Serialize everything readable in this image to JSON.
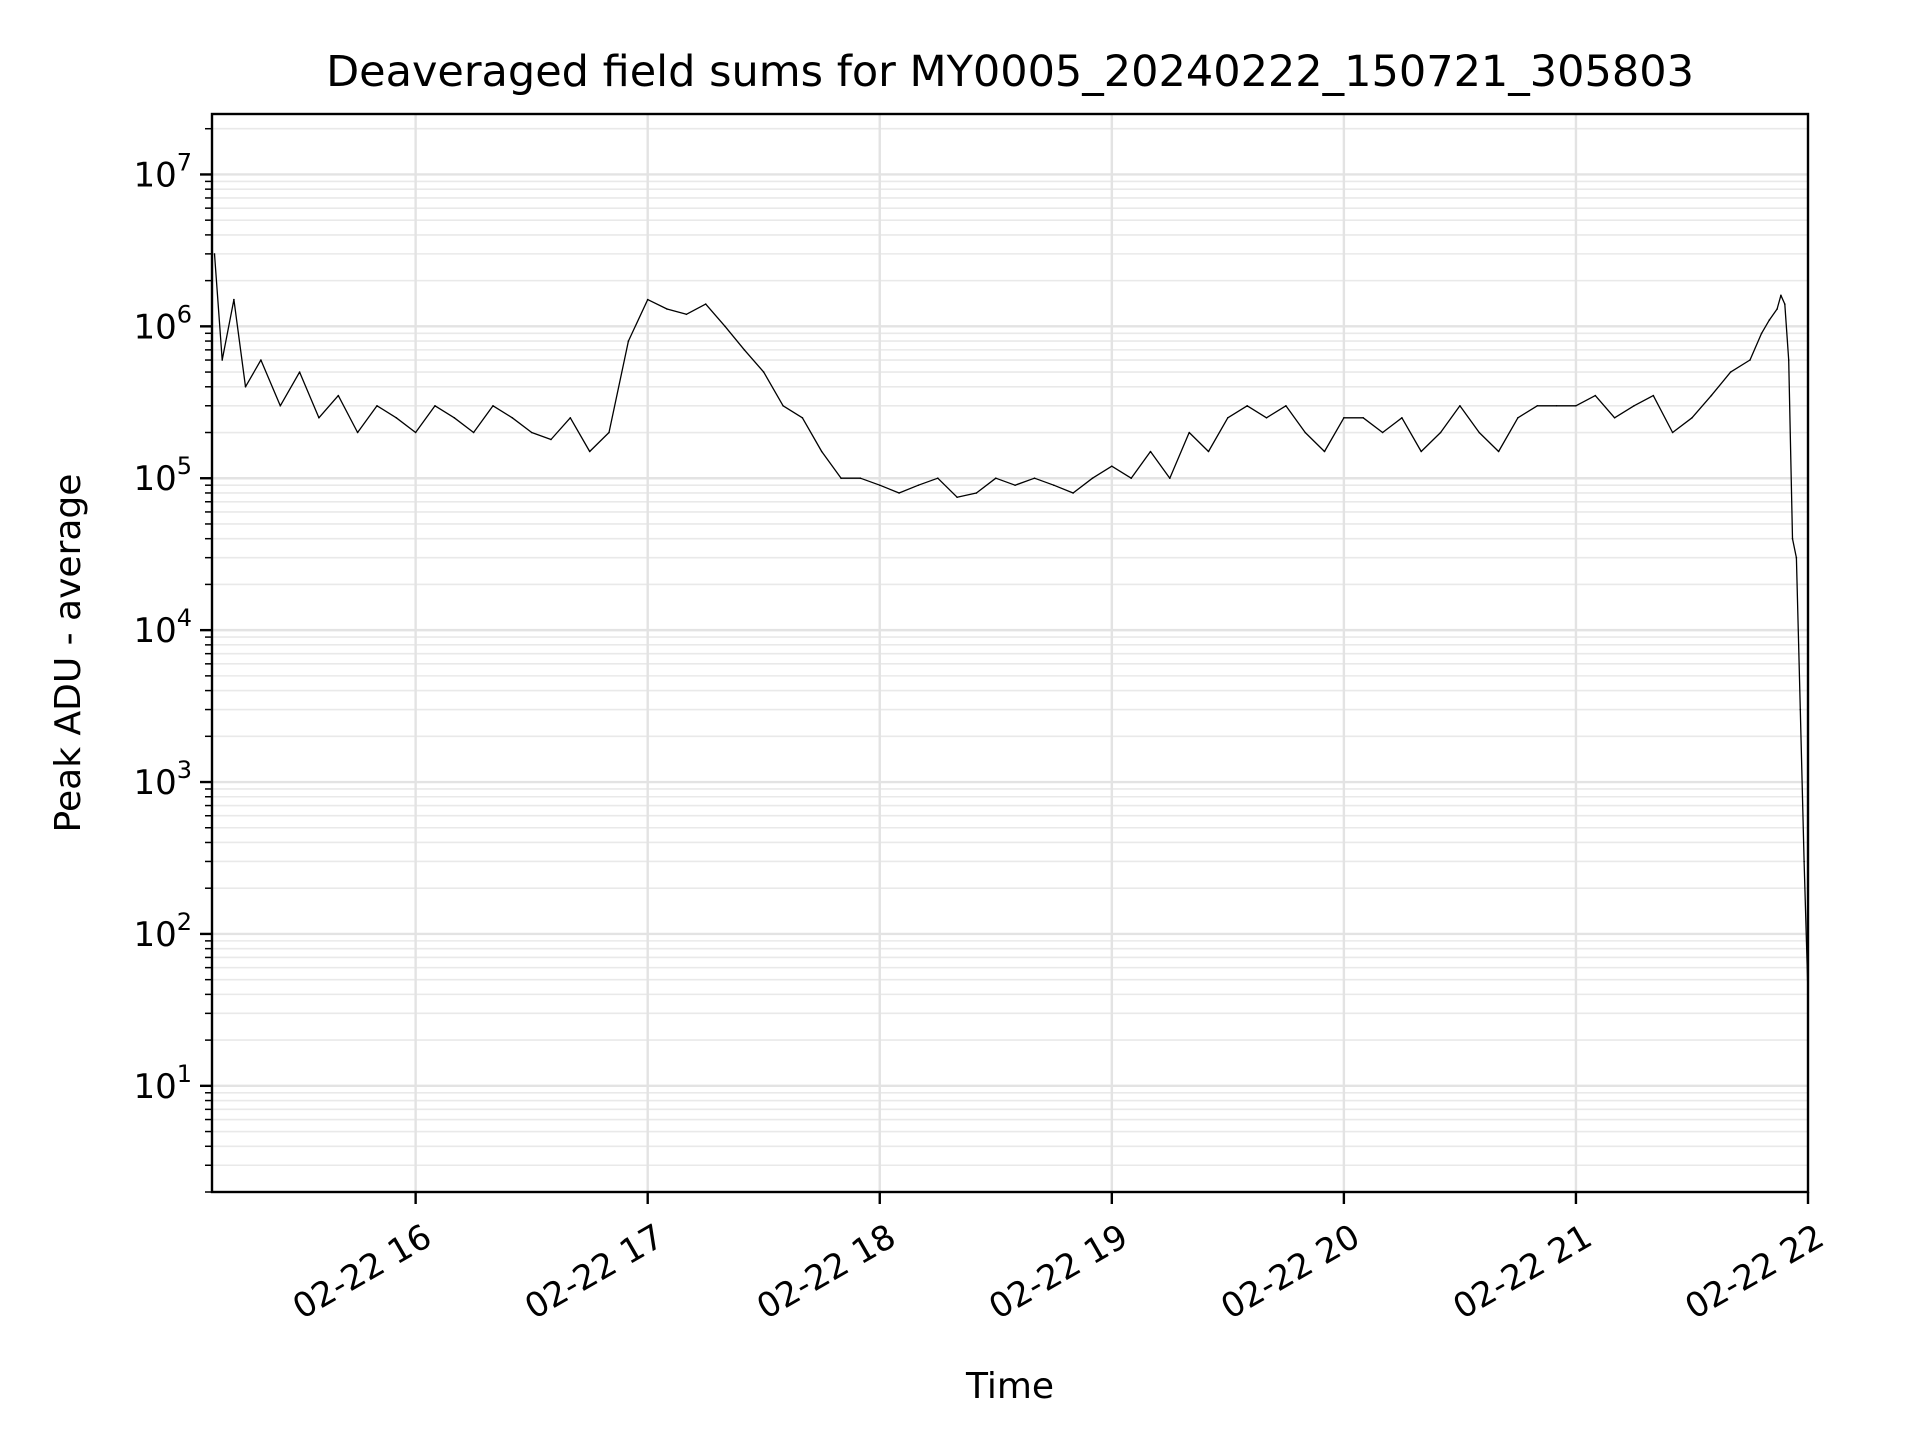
{
  "chart_data": {
    "type": "line",
    "title": "Deaveraged field sums for MY0005_20240222_150721_305803",
    "xlabel": "Time",
    "ylabel": "Peak ADU - average",
    "yscale": "log",
    "ylim": [
      2,
      25000000
    ],
    "xlim": [
      "2024-02-22 15:07:21",
      "2024-02-22 22:00:00"
    ],
    "grid": true,
    "x_ticks": [
      {
        "value": "2024-02-22 16:00",
        "label": "02-22 16"
      },
      {
        "value": "2024-02-22 17:00",
        "label": "02-22 17"
      },
      {
        "value": "2024-02-22 18:00",
        "label": "02-22 18"
      },
      {
        "value": "2024-02-22 19:00",
        "label": "02-22 19"
      },
      {
        "value": "2024-02-22 20:00",
        "label": "02-22 20"
      },
      {
        "value": "2024-02-22 21:00",
        "label": "02-22 21"
      },
      {
        "value": "2024-02-22 22:00",
        "label": "02-22 22"
      }
    ],
    "y_ticks": [
      {
        "value": 10,
        "base": "10",
        "exp": "1"
      },
      {
        "value": 100,
        "base": "10",
        "exp": "2"
      },
      {
        "value": 1000,
        "base": "10",
        "exp": "3"
      },
      {
        "value": 10000,
        "base": "10",
        "exp": "4"
      },
      {
        "value": 100000,
        "base": "10",
        "exp": "5"
      },
      {
        "value": 1000000,
        "base": "10",
        "exp": "6"
      },
      {
        "value": 10000000,
        "base": "10",
        "exp": "7"
      }
    ],
    "series": [
      {
        "color": "#000000",
        "x": [
          "2024-02-22 15:08",
          "2024-02-22 15:10",
          "2024-02-22 15:13",
          "2024-02-22 15:16",
          "2024-02-22 15:20",
          "2024-02-22 15:25",
          "2024-02-22 15:30",
          "2024-02-22 15:35",
          "2024-02-22 15:40",
          "2024-02-22 15:45",
          "2024-02-22 15:50",
          "2024-02-22 15:55",
          "2024-02-22 16:00",
          "2024-02-22 16:05",
          "2024-02-22 16:10",
          "2024-02-22 16:15",
          "2024-02-22 16:20",
          "2024-02-22 16:25",
          "2024-02-22 16:30",
          "2024-02-22 16:35",
          "2024-02-22 16:40",
          "2024-02-22 16:45",
          "2024-02-22 16:50",
          "2024-02-22 16:55",
          "2024-02-22 17:00",
          "2024-02-22 17:05",
          "2024-02-22 17:10",
          "2024-02-22 17:15",
          "2024-02-22 17:20",
          "2024-02-22 17:25",
          "2024-02-22 17:30",
          "2024-02-22 17:35",
          "2024-02-22 17:40",
          "2024-02-22 17:45",
          "2024-02-22 17:50",
          "2024-02-22 17:55",
          "2024-02-22 18:00",
          "2024-02-22 18:05",
          "2024-02-22 18:10",
          "2024-02-22 18:15",
          "2024-02-22 18:20",
          "2024-02-22 18:25",
          "2024-02-22 18:30",
          "2024-02-22 18:35",
          "2024-02-22 18:40",
          "2024-02-22 18:45",
          "2024-02-22 18:50",
          "2024-02-22 18:55",
          "2024-02-22 19:00",
          "2024-02-22 19:05",
          "2024-02-22 19:10",
          "2024-02-22 19:15",
          "2024-02-22 19:20",
          "2024-02-22 19:25",
          "2024-02-22 19:30",
          "2024-02-22 19:35",
          "2024-02-22 19:40",
          "2024-02-22 19:45",
          "2024-02-22 19:50",
          "2024-02-22 19:55",
          "2024-02-22 20:00",
          "2024-02-22 20:05",
          "2024-02-22 20:10",
          "2024-02-22 20:15",
          "2024-02-22 20:20",
          "2024-02-22 20:25",
          "2024-02-22 20:30",
          "2024-02-22 20:35",
          "2024-02-22 20:40",
          "2024-02-22 20:45",
          "2024-02-22 20:50",
          "2024-02-22 20:55",
          "2024-02-22 21:00",
          "2024-02-22 21:05",
          "2024-02-22 21:10",
          "2024-02-22 21:15",
          "2024-02-22 21:20",
          "2024-02-22 21:25",
          "2024-02-22 21:30",
          "2024-02-22 21:35",
          "2024-02-22 21:40",
          "2024-02-22 21:45",
          "2024-02-22 21:48",
          "2024-02-22 21:50",
          "2024-02-22 21:52",
          "2024-02-22 21:53",
          "2024-02-22 21:54",
          "2024-02-22 21:55",
          "2024-02-22 21:56",
          "2024-02-22 21:57",
          "2024-02-22 21:58",
          "2024-02-22 21:59",
          "2024-02-22 22:00"
        ],
        "y": [
          3000000,
          600000,
          1500000,
          400000,
          600000,
          300000,
          500000,
          250000,
          350000,
          200000,
          300000,
          250000,
          200000,
          300000,
          250000,
          200000,
          300000,
          250000,
          200000,
          180000,
          250000,
          150000,
          200000,
          800000,
          1500000,
          1300000,
          1200000,
          1400000,
          1000000,
          700000,
          500000,
          300000,
          250000,
          150000,
          100000,
          100000,
          90000,
          80000,
          90000,
          100000,
          75000,
          80000,
          100000,
          90000,
          100000,
          90000,
          80000,
          100000,
          120000,
          100000,
          150000,
          100000,
          200000,
          150000,
          250000,
          300000,
          250000,
          300000,
          200000,
          150000,
          250000,
          250000,
          200000,
          250000,
          150000,
          200000,
          300000,
          200000,
          150000,
          250000,
          300000,
          300000,
          300000,
          350000,
          250000,
          300000,
          350000,
          200000,
          250000,
          350000,
          500000,
          600000,
          900000,
          1100000,
          1300000,
          1600000,
          1400000,
          600000,
          40000,
          30000,
          3000,
          300,
          40
        ]
      }
    ]
  }
}
